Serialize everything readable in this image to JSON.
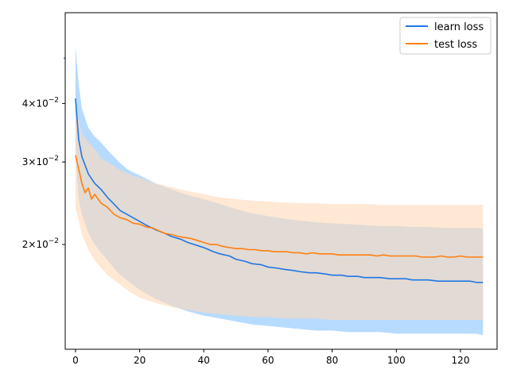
{
  "chart_data": {
    "type": "line",
    "title": "",
    "xlabel": "",
    "ylabel": "",
    "yscale": "log",
    "xlim": [
      -3.2,
      131.4
    ],
    "ylim": [
      0.01195,
      0.0625
    ],
    "grid": false,
    "legend": {
      "placement": "top-right"
    },
    "x_ticks": [
      0,
      20,
      40,
      60,
      80,
      100,
      120
    ],
    "x_tick_labels": [
      "0",
      "20",
      "40",
      "60",
      "80",
      "100",
      "120"
    ],
    "y_ticks": [
      0.02,
      0.03,
      0.04
    ],
    "y_tick_labels": [
      {
        "base": "2",
        "times": "×",
        "power_base": "10",
        "exp": "−2"
      },
      {
        "base": "3",
        "times": "×",
        "power_base": "10",
        "exp": "−2"
      },
      {
        "base": "4",
        "times": "×",
        "power_base": "10",
        "exp": "−2"
      }
    ],
    "y_minor_ticks": [
      0.05
    ],
    "series": [
      {
        "name": "learn loss",
        "color": "#1f77e4",
        "band_color": "#9fcfff",
        "points": [
          [
            0,
            0.041
          ],
          [
            1,
            0.0335
          ],
          [
            2,
            0.0308
          ],
          [
            4,
            0.0283
          ],
          [
            6,
            0.027
          ],
          [
            8,
            0.0262
          ],
          [
            10,
            0.0252
          ],
          [
            12,
            0.0244
          ],
          [
            14,
            0.0236
          ],
          [
            16,
            0.0232
          ],
          [
            18,
            0.0228
          ],
          [
            20,
            0.0224
          ],
          [
            22,
            0.022
          ],
          [
            25,
            0.0215
          ],
          [
            28,
            0.0211
          ],
          [
            30,
            0.0208
          ],
          [
            33,
            0.0205
          ],
          [
            35,
            0.0202
          ],
          [
            38,
            0.0199
          ],
          [
            40,
            0.0197
          ],
          [
            43,
            0.0193
          ],
          [
            45,
            0.0191
          ],
          [
            48,
            0.0189
          ],
          [
            50,
            0.0186
          ],
          [
            53,
            0.0184
          ],
          [
            55,
            0.0182
          ],
          [
            58,
            0.0181
          ],
          [
            60,
            0.0179
          ],
          [
            63,
            0.0178
          ],
          [
            65,
            0.0177
          ],
          [
            68,
            0.0176
          ],
          [
            70,
            0.0175
          ],
          [
            73,
            0.0174
          ],
          [
            75,
            0.0174
          ],
          [
            78,
            0.0173
          ],
          [
            80,
            0.0172
          ],
          [
            83,
            0.0172
          ],
          [
            85,
            0.0171
          ],
          [
            88,
            0.0171
          ],
          [
            90,
            0.017
          ],
          [
            93,
            0.017
          ],
          [
            95,
            0.017
          ],
          [
            98,
            0.0169
          ],
          [
            100,
            0.0169
          ],
          [
            103,
            0.0169
          ],
          [
            105,
            0.0168
          ],
          [
            108,
            0.0168
          ],
          [
            110,
            0.0168
          ],
          [
            113,
            0.0167
          ],
          [
            115,
            0.0167
          ],
          [
            118,
            0.0167
          ],
          [
            120,
            0.0167
          ],
          [
            123,
            0.0167
          ],
          [
            125,
            0.0166
          ],
          [
            127,
            0.0166
          ]
        ],
        "upper": [
          [
            0,
            0.053
          ],
          [
            1,
            0.044
          ],
          [
            2,
            0.039
          ],
          [
            4,
            0.0355
          ],
          [
            6,
            0.034
          ],
          [
            8,
            0.033
          ],
          [
            10,
            0.0318
          ],
          [
            12,
            0.0308
          ],
          [
            14,
            0.0298
          ],
          [
            16,
            0.029
          ],
          [
            18,
            0.0285
          ],
          [
            20,
            0.0281
          ],
          [
            25,
            0.027
          ],
          [
            30,
            0.0262
          ],
          [
            35,
            0.0255
          ],
          [
            40,
            0.025
          ],
          [
            45,
            0.0244
          ],
          [
            50,
            0.0238
          ],
          [
            55,
            0.0233
          ],
          [
            60,
            0.023
          ],
          [
            65,
            0.0227
          ],
          [
            70,
            0.0225
          ],
          [
            75,
            0.0223
          ],
          [
            80,
            0.0222
          ],
          [
            85,
            0.0221
          ],
          [
            90,
            0.022
          ],
          [
            95,
            0.0219
          ],
          [
            100,
            0.0219
          ],
          [
            105,
            0.0218
          ],
          [
            110,
            0.0218
          ],
          [
            115,
            0.0217
          ],
          [
            120,
            0.0217
          ],
          [
            125,
            0.0217
          ],
          [
            127,
            0.0216
          ]
        ],
        "lower": [
          [
            0,
            0.031
          ],
          [
            1,
            0.025
          ],
          [
            2,
            0.0232
          ],
          [
            4,
            0.0212
          ],
          [
            6,
            0.02
          ],
          [
            8,
            0.0192
          ],
          [
            10,
            0.0185
          ],
          [
            12,
            0.0178
          ],
          [
            14,
            0.0172
          ],
          [
            16,
            0.0168
          ],
          [
            18,
            0.0164
          ],
          [
            20,
            0.016
          ],
          [
            25,
            0.0153
          ],
          [
            30,
            0.0148
          ],
          [
            35,
            0.0144
          ],
          [
            40,
            0.0141
          ],
          [
            45,
            0.0139
          ],
          [
            50,
            0.0137
          ],
          [
            55,
            0.0135
          ],
          [
            60,
            0.0134
          ],
          [
            65,
            0.0133
          ],
          [
            70,
            0.0132
          ],
          [
            75,
            0.0131
          ],
          [
            80,
            0.0131
          ],
          [
            85,
            0.013
          ],
          [
            90,
            0.013
          ],
          [
            95,
            0.013
          ],
          [
            100,
            0.0129
          ],
          [
            105,
            0.0129
          ],
          [
            110,
            0.0129
          ],
          [
            115,
            0.0129
          ],
          [
            120,
            0.0129
          ],
          [
            125,
            0.0129
          ],
          [
            127,
            0.0128
          ]
        ]
      },
      {
        "name": "test loss",
        "color": "#ff7f0e",
        "band_color": "#ffd9b8",
        "points": [
          [
            0,
            0.031
          ],
          [
            1,
            0.029
          ],
          [
            2,
            0.027
          ],
          [
            3,
            0.0258
          ],
          [
            4,
            0.0264
          ],
          [
            5,
            0.025
          ],
          [
            6,
            0.0256
          ],
          [
            8,
            0.0245
          ],
          [
            10,
            0.024
          ],
          [
            12,
            0.0232
          ],
          [
            14,
            0.0228
          ],
          [
            16,
            0.0226
          ],
          [
            18,
            0.0222
          ],
          [
            20,
            0.0221
          ],
          [
            22,
            0.0218
          ],
          [
            24,
            0.0217
          ],
          [
            26,
            0.0214
          ],
          [
            28,
            0.0211
          ],
          [
            30,
            0.021
          ],
          [
            32,
            0.0208
          ],
          [
            34,
            0.0207
          ],
          [
            36,
            0.0206
          ],
          [
            38,
            0.0204
          ],
          [
            40,
            0.0202
          ],
          [
            42,
            0.02
          ],
          [
            44,
            0.02
          ],
          [
            46,
            0.0198
          ],
          [
            48,
            0.0197
          ],
          [
            50,
            0.0196
          ],
          [
            52,
            0.0196
          ],
          [
            54,
            0.0195
          ],
          [
            56,
            0.0195
          ],
          [
            58,
            0.0194
          ],
          [
            60,
            0.0194
          ],
          [
            62,
            0.0193
          ],
          [
            64,
            0.0193
          ],
          [
            66,
            0.0193
          ],
          [
            68,
            0.0192
          ],
          [
            70,
            0.0192
          ],
          [
            72,
            0.0191
          ],
          [
            74,
            0.0192
          ],
          [
            76,
            0.0191
          ],
          [
            78,
            0.0191
          ],
          [
            80,
            0.0191
          ],
          [
            82,
            0.019
          ],
          [
            84,
            0.019
          ],
          [
            86,
            0.019
          ],
          [
            88,
            0.019
          ],
          [
            90,
            0.019
          ],
          [
            92,
            0.019
          ],
          [
            94,
            0.0189
          ],
          [
            96,
            0.019
          ],
          [
            98,
            0.0189
          ],
          [
            100,
            0.0189
          ],
          [
            102,
            0.0189
          ],
          [
            104,
            0.0189
          ],
          [
            106,
            0.0189
          ],
          [
            108,
            0.0188
          ],
          [
            110,
            0.0188
          ],
          [
            112,
            0.0188
          ],
          [
            114,
            0.0189
          ],
          [
            116,
            0.0188
          ],
          [
            118,
            0.0188
          ],
          [
            120,
            0.0189
          ],
          [
            122,
            0.0188
          ],
          [
            124,
            0.0188
          ],
          [
            126,
            0.0188
          ],
          [
            127,
            0.0188
          ]
        ],
        "upper": [
          [
            0,
            0.0395
          ],
          [
            2,
            0.0345
          ],
          [
            4,
            0.033
          ],
          [
            6,
            0.032
          ],
          [
            8,
            0.0305
          ],
          [
            10,
            0.03
          ],
          [
            12,
            0.0294
          ],
          [
            14,
            0.0288
          ],
          [
            16,
            0.0284
          ],
          [
            18,
            0.028
          ],
          [
            20,
            0.0278
          ],
          [
            25,
            0.027
          ],
          [
            30,
            0.0265
          ],
          [
            35,
            0.026
          ],
          [
            40,
            0.0256
          ],
          [
            45,
            0.0252
          ],
          [
            50,
            0.025
          ],
          [
            55,
            0.0248
          ],
          [
            60,
            0.0247
          ],
          [
            65,
            0.0246
          ],
          [
            70,
            0.0245
          ],
          [
            75,
            0.0245
          ],
          [
            80,
            0.0244
          ],
          [
            85,
            0.0244
          ],
          [
            90,
            0.0244
          ],
          [
            95,
            0.0243
          ],
          [
            100,
            0.0243
          ],
          [
            105,
            0.0243
          ],
          [
            110,
            0.0243
          ],
          [
            115,
            0.0243
          ],
          [
            120,
            0.0243
          ],
          [
            125,
            0.0243
          ],
          [
            127,
            0.0243
          ]
        ],
        "lower": [
          [
            0,
            0.024
          ],
          [
            2,
            0.021
          ],
          [
            4,
            0.0195
          ],
          [
            6,
            0.0185
          ],
          [
            8,
            0.0178
          ],
          [
            10,
            0.0172
          ],
          [
            12,
            0.0168
          ],
          [
            14,
            0.0164
          ],
          [
            16,
            0.016
          ],
          [
            18,
            0.0157
          ],
          [
            20,
            0.0154
          ],
          [
            25,
            0.015
          ],
          [
            30,
            0.0147
          ],
          [
            35,
            0.0145
          ],
          [
            40,
            0.0143
          ],
          [
            45,
            0.0142
          ],
          [
            50,
            0.0141
          ],
          [
            55,
            0.014
          ],
          [
            60,
            0.014
          ],
          [
            65,
            0.0139
          ],
          [
            70,
            0.0139
          ],
          [
            75,
            0.0139
          ],
          [
            80,
            0.0138
          ],
          [
            85,
            0.0138
          ],
          [
            90,
            0.0138
          ],
          [
            95,
            0.0138
          ],
          [
            100,
            0.0138
          ],
          [
            105,
            0.0138
          ],
          [
            110,
            0.0138
          ],
          [
            115,
            0.0138
          ],
          [
            120,
            0.0138
          ],
          [
            125,
            0.0138
          ],
          [
            127,
            0.0138
          ]
        ]
      }
    ]
  }
}
